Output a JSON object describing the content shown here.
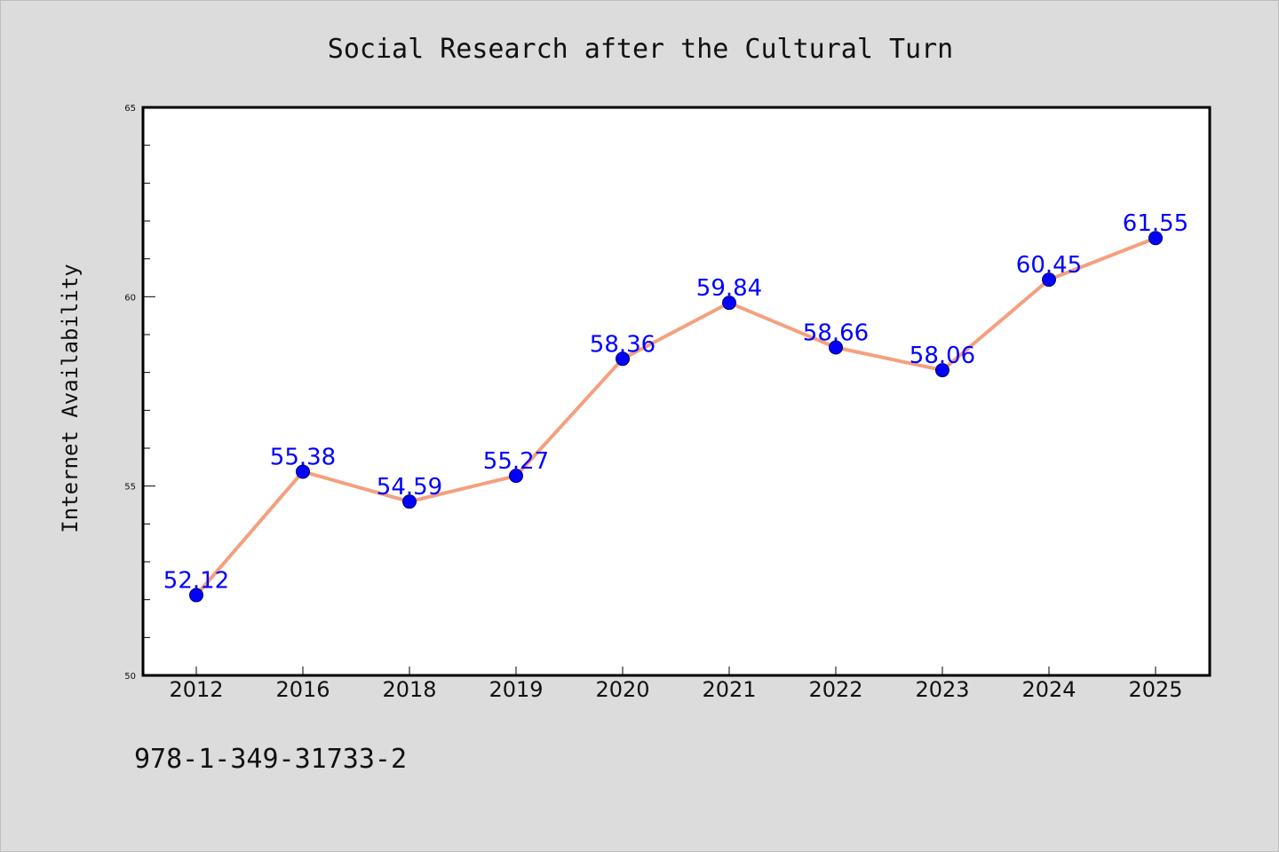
{
  "chart_data": {
    "type": "line",
    "title": "Social Research after the Cultural Turn",
    "xlabel": "",
    "ylabel": "Internet Availability",
    "categories": [
      "2012",
      "2016",
      "2018",
      "2019",
      "2020",
      "2021",
      "2022",
      "2023",
      "2024",
      "2025"
    ],
    "series": [
      {
        "values": [
          52.12,
          55.38,
          54.59,
          55.27,
          58.36,
          59.84,
          58.66,
          58.06,
          60.45,
          61.55
        ],
        "data_labels": [
          "52.12",
          "55.38",
          "54.59",
          "55.27",
          "58.36",
          "59.84",
          "58.66",
          "58.06",
          "60.45",
          "61.55"
        ]
      }
    ],
    "ylim": [
      50,
      65
    ],
    "yticks": [
      "50",
      "55",
      "60",
      "65"
    ],
    "grid": false,
    "legend": "none",
    "line_color": "#f4a07e",
    "marker_color": "#0000ff",
    "label_color": "#0000ff"
  },
  "footnote": "978-1-349-31733-2"
}
